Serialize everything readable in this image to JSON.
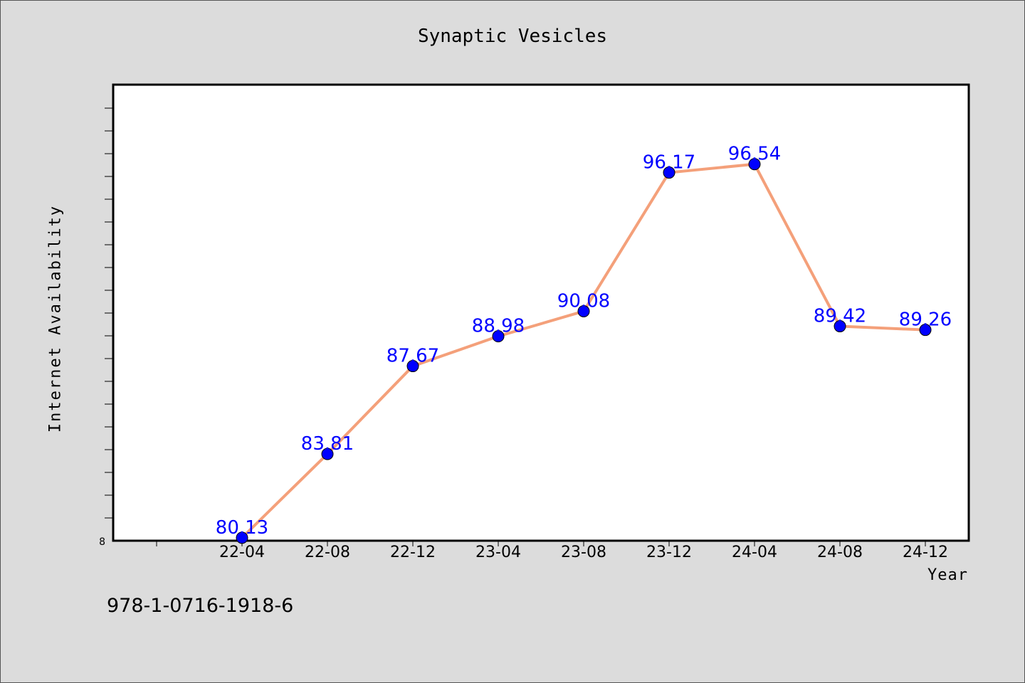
{
  "chart_data": {
    "type": "line",
    "title": "Synaptic Vesicles",
    "xlabel": "Year",
    "ylabel": "Internet Availability",
    "categories": [
      "22-04",
      "22-08",
      "22-12",
      "23-04",
      "23-08",
      "23-12",
      "24-04",
      "24-08",
      "24-12"
    ],
    "series": [
      {
        "values": [
          80.13,
          83.81,
          87.67,
          88.98,
          90.08,
          96.17,
          96.54,
          89.42,
          89.26
        ],
        "labels": [
          "80.13",
          "83.81",
          "87.67",
          "88.98",
          "90.08",
          "96.17",
          "96.54",
          "89.42",
          "89.26"
        ],
        "line_color": "#f4a07a",
        "marker_color": "#0000ff"
      }
    ],
    "ylim": [
      80,
      100
    ],
    "y_tick_label": "8",
    "grid": false,
    "legend": "none"
  },
  "footnote": "978-1-0716-1918-6",
  "colors": {
    "background": "#dcdcdc",
    "plot_background": "#ffffff",
    "line": "#f4a07a",
    "marker": "#0000ff",
    "data_label": "#0000ff"
  }
}
